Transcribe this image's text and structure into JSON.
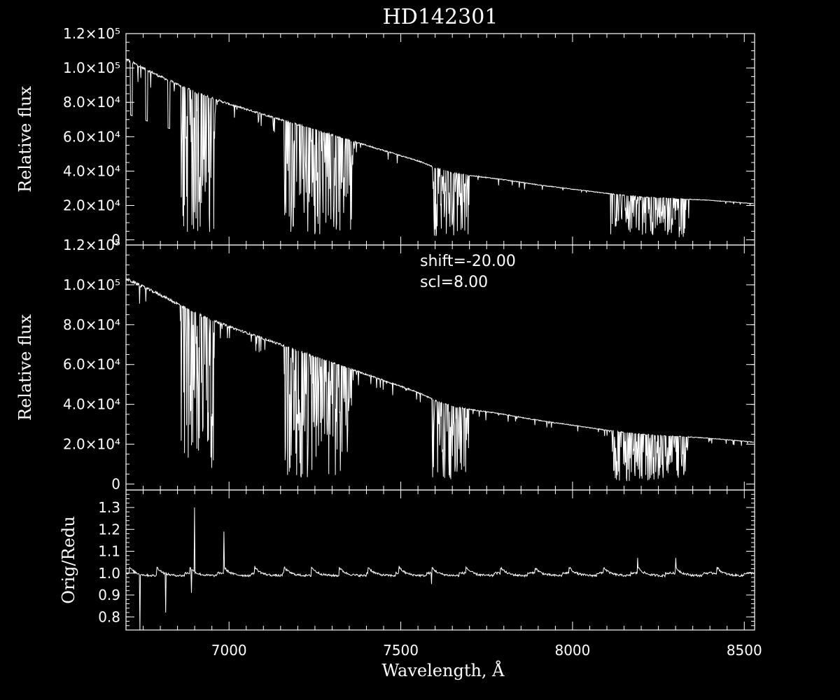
{
  "colors": {
    "background": "#000000",
    "foreground": "#ffffff"
  },
  "chart_data": [
    {
      "type": "line",
      "title": "HD142301",
      "xlabel": "",
      "ylabel": "Relative flux",
      "xlim": [
        6700,
        8530
      ],
      "ylim": [
        -3000,
        120000
      ],
      "y_tick_labels": [
        {
          "v": 0,
          "label": "0"
        },
        {
          "v": 20000,
          "label": "2.0×10⁴"
        },
        {
          "v": 40000,
          "label": "4.0×10⁴"
        },
        {
          "v": 60000,
          "label": "6.0×10⁴"
        },
        {
          "v": 80000,
          "label": "8.0×10⁴"
        },
        {
          "v": 100000,
          "label": "1.0×10⁵"
        },
        {
          "v": 120000,
          "label": "1.2×10⁵"
        }
      ],
      "series": [
        {
          "continuum": [
            [
              6700,
              105000
            ],
            [
              6800,
              95000
            ],
            [
              6900,
              86000
            ],
            [
              7000,
              79000
            ],
            [
              7100,
              73000
            ],
            [
              7200,
              67000
            ],
            [
              7300,
              61000
            ],
            [
              7400,
              55000
            ],
            [
              7500,
              49000
            ],
            [
              7550,
              46000
            ],
            [
              7600,
              42000
            ],
            [
              7650,
              39000
            ],
            [
              7700,
              37500
            ],
            [
              7800,
              35000
            ],
            [
              7900,
              32000
            ],
            [
              8000,
              29500
            ],
            [
              8100,
              27000
            ],
            [
              8200,
              25000
            ],
            [
              8300,
              24000
            ],
            [
              8400,
              23000
            ],
            [
              8530,
              21000
            ]
          ],
          "absorption_bands": [
            [
              6860,
              6960
            ],
            [
              7160,
              7360
            ],
            [
              7590,
              7700
            ],
            [
              8110,
              8340
            ]
          ],
          "deep_lines": [
            6715,
            6760,
            6825
          ]
        }
      ]
    },
    {
      "type": "line",
      "title": "",
      "xlabel": "",
      "ylabel": "Relative flux",
      "xlim": [
        6700,
        8530
      ],
      "ylim": [
        -3000,
        120000
      ],
      "annotations": [
        "shift=-20.00",
        "scl=8.00"
      ],
      "y_tick_labels": [
        {
          "v": 0,
          "label": "0"
        },
        {
          "v": 20000,
          "label": "2.0×10⁴"
        },
        {
          "v": 40000,
          "label": "4.0×10⁴"
        },
        {
          "v": 60000,
          "label": "6.0×10⁴"
        },
        {
          "v": 80000,
          "label": "8.0×10⁴"
        },
        {
          "v": 100000,
          "label": "1.0×10⁵"
        },
        {
          "v": 120000,
          "label": "1.2×10⁵"
        }
      ],
      "series": [
        {
          "continuum": [
            [
              6700,
              103000
            ],
            [
              6800,
              95000
            ],
            [
              6900,
              86000
            ],
            [
              7000,
              79000
            ],
            [
              7100,
              73000
            ],
            [
              7200,
              67000
            ],
            [
              7300,
              61000
            ],
            [
              7400,
              55000
            ],
            [
              7500,
              49000
            ],
            [
              7550,
              46000
            ],
            [
              7600,
              42000
            ],
            [
              7650,
              39000
            ],
            [
              7700,
              37500
            ],
            [
              7800,
              35000
            ],
            [
              7900,
              32000
            ],
            [
              8000,
              29500
            ],
            [
              8100,
              27000
            ],
            [
              8200,
              25000
            ],
            [
              8300,
              24000
            ],
            [
              8400,
              23000
            ],
            [
              8530,
              21000
            ]
          ],
          "absorption_bands": [
            [
              6860,
              6960
            ],
            [
              7160,
              7360
            ],
            [
              7590,
              7700
            ],
            [
              8110,
              8340
            ]
          ],
          "deep_lines": []
        }
      ]
    },
    {
      "type": "line",
      "title": "",
      "xlabel": "Wavelength, Å",
      "ylabel": "Orig/Redu",
      "xlim": [
        6700,
        8530
      ],
      "ylim": [
        0.74,
        1.38
      ],
      "x_tick_labels": [
        {
          "v": 7000,
          "label": "7000"
        },
        {
          "v": 7500,
          "label": "7500"
        },
        {
          "v": 8000,
          "label": "8000"
        },
        {
          "v": 8500,
          "label": "8500"
        }
      ],
      "y_tick_labels": [
        {
          "v": 0.8,
          "label": "0.8"
        },
        {
          "v": 0.9,
          "label": "0.9"
        },
        {
          "v": 1.0,
          "label": "1.0"
        },
        {
          "v": 1.1,
          "label": "1.1"
        },
        {
          "v": 1.2,
          "label": "1.2"
        },
        {
          "v": 1.3,
          "label": "1.3"
        }
      ],
      "series": [
        {
          "baseline": 1.0,
          "order_edges": [
            6710,
            6790,
            6885,
            6985,
            7075,
            7160,
            7240,
            7320,
            7405,
            7495,
            7590,
            7690,
            7790,
            7890,
            7990,
            8090,
            8190,
            8300,
            8420
          ],
          "spikes": [
            [
              6900,
              1.3
            ],
            [
              6985,
              1.19
            ],
            [
              6890,
              0.91
            ],
            [
              6815,
              0.82
            ],
            [
              6740,
              0.74
            ],
            [
              7590,
              1.05
            ],
            [
              7590,
              0.95
            ],
            [
              8190,
              0.95
            ],
            [
              8190,
              1.07
            ],
            [
              8300,
              0.87
            ],
            [
              8300,
              1.07
            ]
          ]
        }
      ]
    }
  ]
}
